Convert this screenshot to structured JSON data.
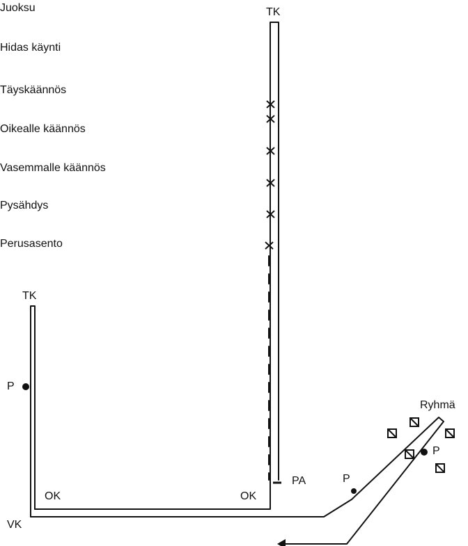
{
  "legend": {
    "items": [
      "Juoksu",
      "Hidas käynti",
      "Täyskäännös",
      "Oikealle käännös",
      "Vasemmalle käännös",
      "Pysähdys",
      "Perusasento"
    ]
  },
  "labels": {
    "tk_top": "TK",
    "tk_left": "TK",
    "p_left": "P",
    "ok_left": "OK",
    "ok_right": "OK",
    "vk": "VK",
    "pa": "PA",
    "p_path": "P",
    "p_group": "P",
    "group": "Ryhmä"
  },
  "colors": {
    "ink": "#111111",
    "background": "#ffffff"
  }
}
